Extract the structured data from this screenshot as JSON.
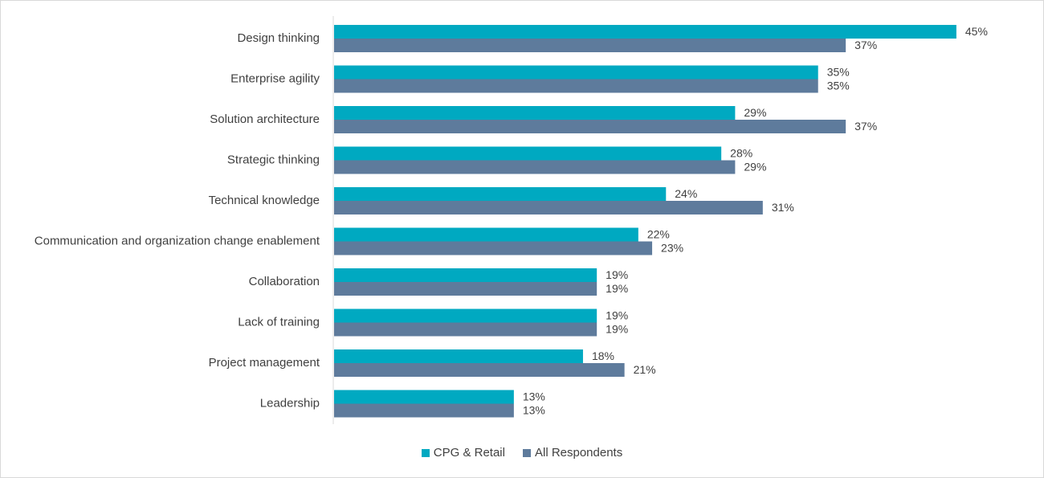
{
  "chart_data": {
    "type": "bar",
    "orientation": "horizontal",
    "categories": [
      "Design thinking",
      "Enterprise agility",
      "Solution architecture",
      "Strategic thinking",
      "Technical knowledge",
      "Communication and organization change enablement",
      "Collaboration",
      "Lack of training",
      "Project management",
      "Leadership"
    ],
    "series": [
      {
        "name": "CPG & Retail",
        "color": "#00a9c1",
        "values": [
          45,
          35,
          29,
          28,
          24,
          22,
          19,
          19,
          18,
          13
        ],
        "labels": [
          "45%",
          "35%",
          "29%",
          "28%",
          "24%",
          "22%",
          "19%",
          "19%",
          "18%",
          "13%"
        ]
      },
      {
        "name": "All Respondents",
        "color": "#5e7b9c",
        "values": [
          37,
          35,
          37,
          29,
          31,
          23,
          19,
          19,
          21,
          13
        ],
        "labels": [
          "37%",
          "35%",
          "37%",
          "29%",
          "31%",
          "23%",
          "19%",
          "19%",
          "21%",
          "13%"
        ]
      }
    ],
    "xlim": [
      0,
      50
    ],
    "gridlines": false,
    "legend_position": "bottom-center",
    "title": "",
    "xlabel": "",
    "ylabel": ""
  }
}
